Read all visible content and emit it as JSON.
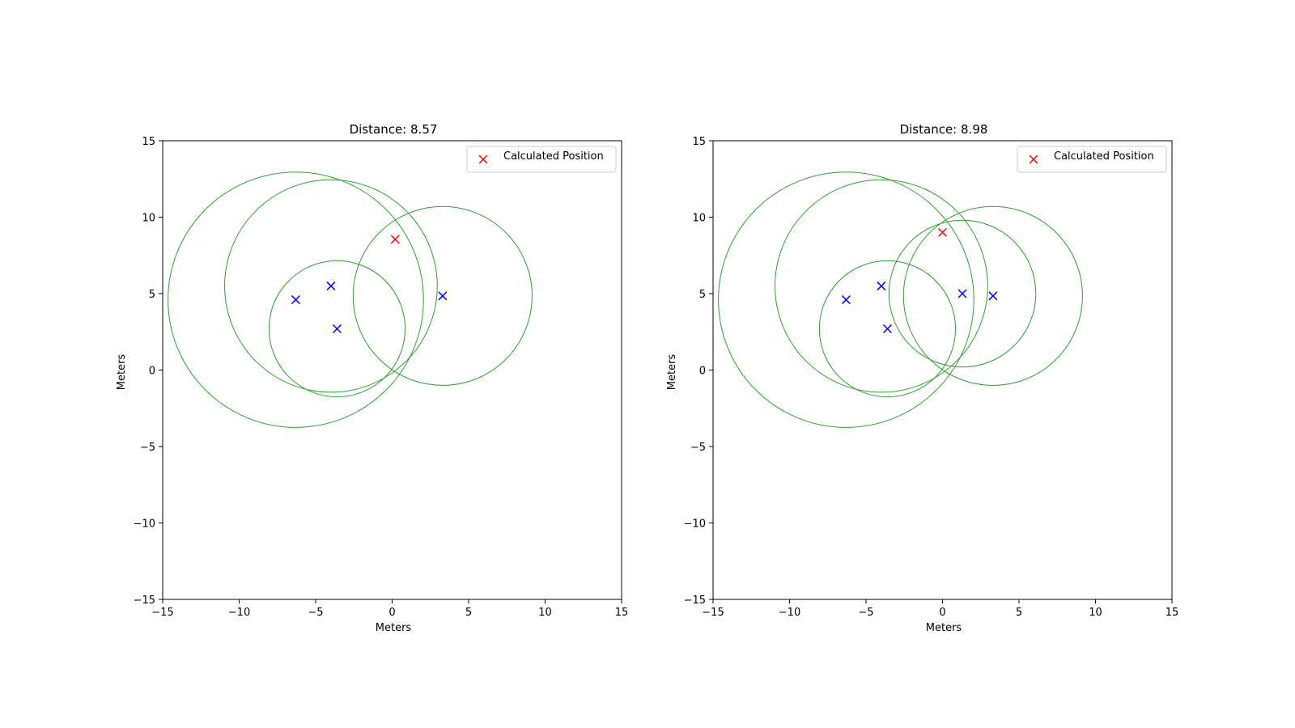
{
  "colors": {
    "circle": "#2ca02c",
    "anchor": "#0000ff",
    "calculated": "#ff0000",
    "legend_border": "#cccccc"
  },
  "chart_data": [
    {
      "type": "scatter",
      "title": "Distance: 8.57",
      "xlabel": "Meters",
      "ylabel": "Meters",
      "xlim": [
        -15,
        15
      ],
      "ylim": [
        -15,
        15
      ],
      "xticks": [
        -15,
        -10,
        -5,
        0,
        5,
        10,
        15
      ],
      "yticks": [
        -15,
        -10,
        -5,
        0,
        5,
        10,
        15
      ],
      "tick_labels": [
        "−15",
        "−10",
        "−5",
        "0",
        "5",
        "10",
        "15"
      ],
      "grid": false,
      "legend": {
        "position": "top-right",
        "entries": [
          "Calculated Position"
        ]
      },
      "anchors": [
        {
          "x": -6.3,
          "y": 4.6
        },
        {
          "x": -4.0,
          "y": 5.5
        },
        {
          "x": -3.6,
          "y": 2.7
        },
        {
          "x": 3.3,
          "y": 4.85
        }
      ],
      "circles": [
        {
          "cx": -6.3,
          "cy": 4.6,
          "r": 8.35
        },
        {
          "cx": -4.0,
          "cy": 5.5,
          "r": 6.95
        },
        {
          "cx": -3.6,
          "cy": 2.7,
          "r": 4.45
        },
        {
          "cx": 3.3,
          "cy": 4.85,
          "r": 5.85
        }
      ],
      "calculated": {
        "x": 0.2,
        "y": 8.55
      }
    },
    {
      "type": "scatter",
      "title": "Distance: 8.98",
      "xlabel": "Meters",
      "ylabel": "Meters",
      "xlim": [
        -15,
        15
      ],
      "ylim": [
        -15,
        15
      ],
      "xticks": [
        -15,
        -10,
        -5,
        0,
        5,
        10,
        15
      ],
      "yticks": [
        -15,
        -10,
        -5,
        0,
        5,
        10,
        15
      ],
      "tick_labels": [
        "−15",
        "−10",
        "−5",
        "0",
        "5",
        "10",
        "15"
      ],
      "grid": false,
      "legend": {
        "position": "top-right",
        "entries": [
          "Calculated Position"
        ]
      },
      "anchors": [
        {
          "x": -6.3,
          "y": 4.6
        },
        {
          "x": -4.0,
          "y": 5.5
        },
        {
          "x": -3.6,
          "y": 2.7
        },
        {
          "x": 1.3,
          "y": 5.0
        },
        {
          "x": 3.3,
          "y": 4.85
        }
      ],
      "circles": [
        {
          "cx": -6.3,
          "cy": 4.6,
          "r": 8.35
        },
        {
          "cx": -4.0,
          "cy": 5.5,
          "r": 6.95
        },
        {
          "cx": -3.6,
          "cy": 2.7,
          "r": 4.45
        },
        {
          "cx": 1.3,
          "cy": 5.0,
          "r": 4.8
        },
        {
          "cx": 3.3,
          "cy": 4.85,
          "r": 5.85
        }
      ],
      "calculated": {
        "x": 0.0,
        "y": 9.0
      }
    }
  ]
}
